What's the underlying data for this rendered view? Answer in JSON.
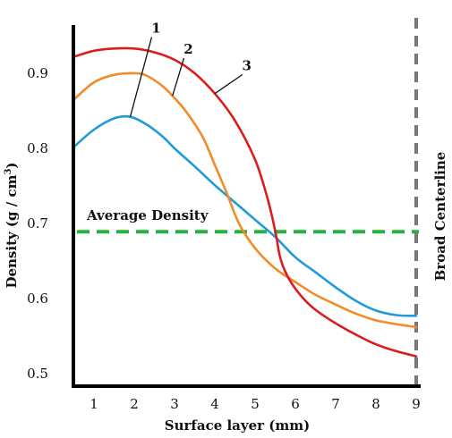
{
  "chart_data": {
    "type": "line",
    "title": "",
    "xlabel": "Surface layer (mm)",
    "ylabel_main": "Density (g / cm",
    "ylabel_sup": "3",
    "ylabel_close": ")",
    "xlim": [
      0.5,
      9.1
    ],
    "ylim": [
      0.49,
      0.97
    ],
    "x_ticks": [
      1,
      2,
      3,
      4,
      5,
      6,
      7,
      8,
      9
    ],
    "y_ticks": [
      0.5,
      0.6,
      0.7,
      0.8,
      0.9
    ],
    "y_tick_labels": [
      "0.5",
      "0.6",
      "0.7",
      "0.8",
      "0.9"
    ],
    "grid": false,
    "reference_lines": [
      {
        "orientation": "horizontal",
        "value": 0.689,
        "label": "Average Density",
        "color": "#22b43c",
        "style": "dashed"
      },
      {
        "orientation": "vertical",
        "value": 9,
        "label": "Broad Centerline",
        "color": "#777777",
        "style": "dashed"
      }
    ],
    "series": [
      {
        "name": "1",
        "color": "#1f9bd8",
        "x": [
          0.5,
          1.0,
          1.5,
          1.9,
          2.3,
          2.7,
          3.0,
          3.5,
          4.0,
          4.5,
          5.0,
          5.5,
          6.0,
          6.5,
          7.0,
          7.5,
          8.0,
          8.5,
          9.0
        ],
        "y": [
          0.802,
          0.825,
          0.84,
          0.842,
          0.832,
          0.816,
          0.8,
          0.776,
          0.751,
          0.728,
          0.705,
          0.682,
          0.655,
          0.635,
          0.615,
          0.597,
          0.584,
          0.578,
          0.577
        ]
      },
      {
        "name": "2",
        "color": "#f28b28",
        "x": [
          0.5,
          1.0,
          1.5,
          2.0,
          2.3,
          2.7,
          3.0,
          3.3,
          3.7,
          4.0,
          4.3,
          4.6,
          5.0,
          5.5,
          6.0,
          6.5,
          7.0,
          7.5,
          8.0,
          8.5,
          9.0
        ],
        "y": [
          0.865,
          0.888,
          0.898,
          0.9,
          0.897,
          0.883,
          0.867,
          0.848,
          0.815,
          0.778,
          0.74,
          0.7,
          0.667,
          0.64,
          0.622,
          0.605,
          0.592,
          0.58,
          0.571,
          0.566,
          0.562
        ]
      },
      {
        "name": "3",
        "color": "#dc1c1c",
        "x": [
          0.5,
          1.0,
          1.5,
          2.0,
          2.5,
          3.0,
          3.5,
          4.0,
          4.5,
          5.0,
          5.3,
          5.5,
          5.6,
          5.7,
          5.9,
          6.2,
          6.5,
          7.0,
          7.5,
          8.0,
          8.5,
          9.0
        ],
        "y": [
          0.922,
          0.93,
          0.933,
          0.933,
          0.928,
          0.918,
          0.9,
          0.873,
          0.837,
          0.785,
          0.735,
          0.69,
          0.66,
          0.642,
          0.621,
          0.6,
          0.585,
          0.567,
          0.552,
          0.539,
          0.53,
          0.523
        ]
      }
    ],
    "callouts": [
      {
        "label": "1",
        "series": "1",
        "point_x": 1.9,
        "point_y": 0.842,
        "label_x": 2.5,
        "label_y": 0.953
      },
      {
        "label": "2",
        "series": "2",
        "point_x": 2.95,
        "point_y": 0.87,
        "label_x": 3.3,
        "label_y": 0.925
      },
      {
        "label": "3",
        "series": "3",
        "point_x": 4.0,
        "point_y": 0.873,
        "label_x": 4.75,
        "label_y": 0.903
      }
    ]
  }
}
